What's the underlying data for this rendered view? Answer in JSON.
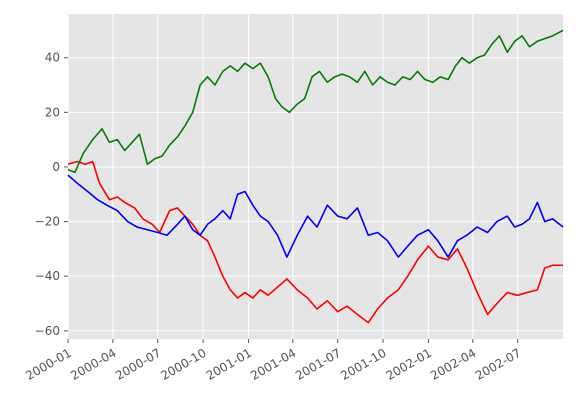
{
  "chart_data": {
    "type": "line",
    "title": "",
    "xlabel": "",
    "ylabel": "",
    "grid": true,
    "x_range": [
      "2000-01-01",
      "2002-10-01"
    ],
    "ylim": [
      -63,
      56
    ],
    "x_ticks": [
      "2000-01",
      "2000-04",
      "2000-07",
      "2000-10",
      "2001-01",
      "2001-04",
      "2001-07",
      "2001-10",
      "2002-01",
      "2002-04",
      "2002-07"
    ],
    "y_ticks": [
      40,
      20,
      0,
      -20,
      -40,
      -60
    ],
    "colors": {
      "plot_background": "#e5e5e5",
      "grid": "#ffffff",
      "tick_text": "#555555"
    },
    "series": [
      {
        "color": "#ff0000",
        "points": [
          [
            "2000-01-01",
            1
          ],
          [
            "2000-01-20",
            2
          ],
          [
            "2000-02-05",
            1
          ],
          [
            "2000-02-20",
            2
          ],
          [
            "2000-03-05",
            -6
          ],
          [
            "2000-03-25",
            -12
          ],
          [
            "2000-04-10",
            -11
          ],
          [
            "2000-04-25",
            -13
          ],
          [
            "2000-05-15",
            -15
          ],
          [
            "2000-06-01",
            -19
          ],
          [
            "2000-06-20",
            -21
          ],
          [
            "2000-07-05",
            -24
          ],
          [
            "2000-07-25",
            -16
          ],
          [
            "2000-08-10",
            -15
          ],
          [
            "2000-08-25",
            -18
          ],
          [
            "2000-09-10",
            -21
          ],
          [
            "2000-09-25",
            -25
          ],
          [
            "2000-10-10",
            -27
          ],
          [
            "2000-10-25",
            -33
          ],
          [
            "2000-11-10",
            -40
          ],
          [
            "2000-11-25",
            -45
          ],
          [
            "2000-12-10",
            -48
          ],
          [
            "2000-12-25",
            -46
          ],
          [
            "2001-01-10",
            -48
          ],
          [
            "2001-01-25",
            -45
          ],
          [
            "2001-02-10",
            -47
          ],
          [
            "2001-03-01",
            -44
          ],
          [
            "2001-03-20",
            -41
          ],
          [
            "2001-04-10",
            -45
          ],
          [
            "2001-05-01",
            -48
          ],
          [
            "2001-05-20",
            -52
          ],
          [
            "2001-06-10",
            -49
          ],
          [
            "2001-07-01",
            -53
          ],
          [
            "2001-07-20",
            -51
          ],
          [
            "2001-08-10",
            -54
          ],
          [
            "2001-09-01",
            -57
          ],
          [
            "2001-09-20",
            -52
          ],
          [
            "2001-10-10",
            -48
          ],
          [
            "2001-11-01",
            -45
          ],
          [
            "2001-11-20",
            -40
          ],
          [
            "2001-12-10",
            -34
          ],
          [
            "2002-01-01",
            -29
          ],
          [
            "2002-01-20",
            -33
          ],
          [
            "2002-02-10",
            -34
          ],
          [
            "2002-03-01",
            -30
          ],
          [
            "2002-03-20",
            -37
          ],
          [
            "2002-04-10",
            -46
          ],
          [
            "2002-05-01",
            -54
          ],
          [
            "2002-05-20",
            -50
          ],
          [
            "2002-06-10",
            -46
          ],
          [
            "2002-07-01",
            -47
          ],
          [
            "2002-07-20",
            -46
          ],
          [
            "2002-08-10",
            -45
          ],
          [
            "2002-08-25",
            -37
          ],
          [
            "2002-09-10",
            -36
          ],
          [
            "2002-10-01",
            -36
          ]
        ]
      },
      {
        "color": "#0000ff",
        "points": [
          [
            "2000-01-01",
            -3
          ],
          [
            "2000-01-20",
            -6
          ],
          [
            "2000-02-10",
            -9
          ],
          [
            "2000-03-01",
            -12
          ],
          [
            "2000-03-20",
            -14
          ],
          [
            "2000-04-10",
            -16
          ],
          [
            "2000-05-01",
            -20
          ],
          [
            "2000-05-20",
            -22
          ],
          [
            "2000-06-10",
            -23
          ],
          [
            "2000-07-01",
            -24
          ],
          [
            "2000-07-20",
            -25
          ],
          [
            "2000-08-10",
            -21
          ],
          [
            "2000-08-25",
            -18
          ],
          [
            "2000-09-10",
            -23
          ],
          [
            "2000-09-25",
            -25
          ],
          [
            "2000-10-10",
            -21
          ],
          [
            "2000-10-25",
            -19
          ],
          [
            "2000-11-10",
            -16
          ],
          [
            "2000-11-25",
            -19
          ],
          [
            "2000-12-10",
            -10
          ],
          [
            "2000-12-25",
            -9
          ],
          [
            "2001-01-10",
            -14
          ],
          [
            "2001-01-25",
            -18
          ],
          [
            "2001-02-10",
            -20
          ],
          [
            "2001-03-01",
            -25
          ],
          [
            "2001-03-20",
            -33
          ],
          [
            "2001-04-10",
            -25
          ],
          [
            "2001-05-01",
            -18
          ],
          [
            "2001-05-20",
            -22
          ],
          [
            "2001-06-10",
            -14
          ],
          [
            "2001-07-01",
            -18
          ],
          [
            "2001-07-20",
            -19
          ],
          [
            "2001-08-10",
            -15
          ],
          [
            "2001-09-01",
            -25
          ],
          [
            "2001-09-20",
            -24
          ],
          [
            "2001-10-10",
            -27
          ],
          [
            "2001-11-01",
            -33
          ],
          [
            "2001-11-20",
            -29
          ],
          [
            "2001-12-10",
            -25
          ],
          [
            "2002-01-01",
            -23
          ],
          [
            "2002-01-20",
            -27
          ],
          [
            "2002-02-10",
            -33
          ],
          [
            "2002-03-01",
            -27
          ],
          [
            "2002-03-20",
            -25
          ],
          [
            "2002-04-10",
            -22
          ],
          [
            "2002-05-01",
            -24
          ],
          [
            "2002-05-20",
            -20
          ],
          [
            "2002-06-10",
            -18
          ],
          [
            "2002-06-25",
            -22
          ],
          [
            "2002-07-10",
            -21
          ],
          [
            "2002-07-25",
            -19
          ],
          [
            "2002-08-10",
            -13
          ],
          [
            "2002-08-25",
            -20
          ],
          [
            "2002-09-10",
            -19
          ],
          [
            "2002-10-01",
            -22
          ]
        ]
      },
      {
        "color": "#008000",
        "points": [
          [
            "2000-01-01",
            -1
          ],
          [
            "2000-01-15",
            -2
          ],
          [
            "2000-02-01",
            5
          ],
          [
            "2000-02-20",
            10
          ],
          [
            "2000-03-10",
            14
          ],
          [
            "2000-03-25",
            9
          ],
          [
            "2000-04-10",
            10
          ],
          [
            "2000-04-25",
            6
          ],
          [
            "2000-05-10",
            9
          ],
          [
            "2000-05-25",
            12
          ],
          [
            "2000-06-10",
            1
          ],
          [
            "2000-06-25",
            3
          ],
          [
            "2000-07-10",
            4
          ],
          [
            "2000-07-25",
            8
          ],
          [
            "2000-08-10",
            11
          ],
          [
            "2000-08-25",
            15
          ],
          [
            "2000-09-10",
            20
          ],
          [
            "2000-09-25",
            30
          ],
          [
            "2000-10-10",
            33
          ],
          [
            "2000-10-25",
            30
          ],
          [
            "2000-11-10",
            35
          ],
          [
            "2000-11-25",
            37
          ],
          [
            "2000-12-10",
            35
          ],
          [
            "2000-12-25",
            38
          ],
          [
            "2001-01-10",
            36
          ],
          [
            "2001-01-25",
            38
          ],
          [
            "2001-02-10",
            33
          ],
          [
            "2001-02-25",
            25
          ],
          [
            "2001-03-10",
            22
          ],
          [
            "2001-03-25",
            20
          ],
          [
            "2001-04-10",
            23
          ],
          [
            "2001-04-25",
            25
          ],
          [
            "2001-05-10",
            33
          ],
          [
            "2001-05-25",
            35
          ],
          [
            "2001-06-10",
            31
          ],
          [
            "2001-06-25",
            33
          ],
          [
            "2001-07-10",
            34
          ],
          [
            "2001-07-25",
            33
          ],
          [
            "2001-08-10",
            31
          ],
          [
            "2001-08-25",
            35
          ],
          [
            "2001-09-10",
            30
          ],
          [
            "2001-09-25",
            33
          ],
          [
            "2001-10-10",
            31
          ],
          [
            "2001-10-25",
            30
          ],
          [
            "2001-11-10",
            33
          ],
          [
            "2001-11-25",
            32
          ],
          [
            "2001-12-10",
            35
          ],
          [
            "2001-12-25",
            32
          ],
          [
            "2002-01-10",
            31
          ],
          [
            "2002-01-25",
            33
          ],
          [
            "2002-02-10",
            32
          ],
          [
            "2002-02-25",
            37
          ],
          [
            "2002-03-10",
            40
          ],
          [
            "2002-03-25",
            38
          ],
          [
            "2002-04-10",
            40
          ],
          [
            "2002-04-25",
            41
          ],
          [
            "2002-05-10",
            45
          ],
          [
            "2002-05-25",
            48
          ],
          [
            "2002-06-10",
            42
          ],
          [
            "2002-06-25",
            46
          ],
          [
            "2002-07-10",
            48
          ],
          [
            "2002-07-25",
            44
          ],
          [
            "2002-08-10",
            46
          ],
          [
            "2002-08-25",
            47
          ],
          [
            "2002-09-10",
            48
          ],
          [
            "2002-10-01",
            50
          ]
        ]
      }
    ]
  }
}
